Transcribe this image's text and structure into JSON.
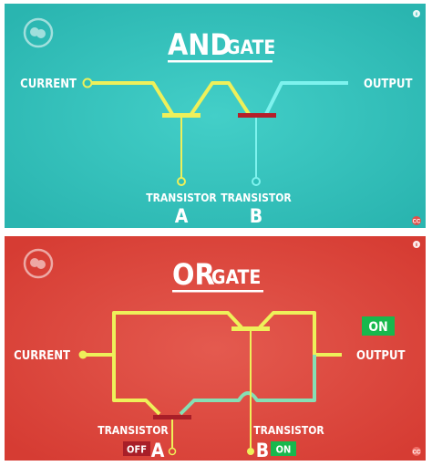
{
  "colors": {
    "teal_bg": "#2ebfb9",
    "red_bg": "#dc4339",
    "wire_yellow": "#eef05a",
    "wire_cyan": "#7ef2ee",
    "wire_mint": "#86dfb4",
    "gate_red": "#b51f2a",
    "on_green": "#18b84d",
    "off_red": "#a81e28",
    "text_white": "#ffffff"
  },
  "and_panel": {
    "title_big": "AND",
    "title_small": "GATE",
    "current_label": "CURRENT",
    "output_label": "OUTPUT",
    "transistor_a_label": "TRANSISTOR",
    "transistor_a_letter": "A",
    "transistor_b_label": "TRANSISTOR",
    "transistor_b_letter": "B",
    "logo_icon": "pbs-logo-icon",
    "info_icon": "info-icon",
    "badge_icon": "crashcourse-badge-icon"
  },
  "or_panel": {
    "title_big": "OR",
    "title_small": "GATE",
    "current_label": "CURRENT",
    "output_label": "OUTPUT",
    "output_state": "ON",
    "transistor_a_label": "TRANSISTOR",
    "transistor_a_letter": "A",
    "transistor_a_state": "OFF",
    "transistor_b_label": "TRANSISTOR",
    "transistor_b_letter": "B",
    "transistor_b_state": "ON",
    "logo_icon": "pbs-logo-icon",
    "info_icon": "info-icon",
    "badge_icon": "crashcourse-badge-icon"
  }
}
